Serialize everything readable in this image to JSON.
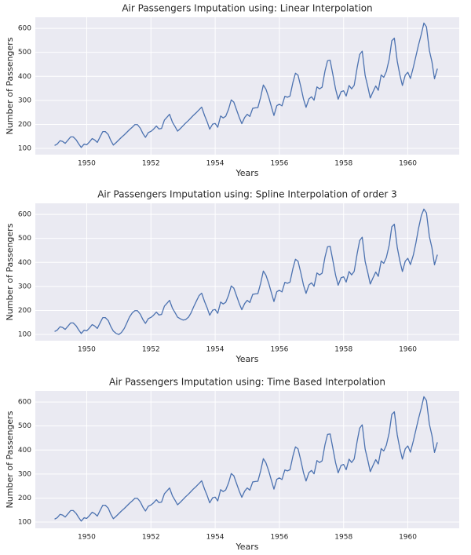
{
  "chart_data": [
    {
      "type": "line",
      "title": "Air Passengers Imputation using: Linear Interpolation",
      "xlabel": "Years",
      "ylabel": "Number of Passengers",
      "color": "#4c72b0",
      "grid": true,
      "xlim": [
        1948.4,
        1961.6
      ],
      "xticks": [
        1950,
        1952,
        1954,
        1956,
        1958,
        1960
      ],
      "ylim": [
        74,
        646
      ],
      "yticks": [
        100,
        200,
        300,
        400,
        500,
        600
      ],
      "x": [
        1949.0,
        1949.08,
        1949.17,
        1949.25,
        1949.33,
        1949.42,
        1949.5,
        1949.58,
        1949.67,
        1949.75,
        1949.83,
        1949.92,
        1950.0,
        1950.08,
        1950.17,
        1950.25,
        1950.33,
        1950.42,
        1950.5,
        1950.58,
        1950.67,
        1950.75,
        1950.83,
        1950.92,
        1951.0,
        1951.08,
        1951.17,
        1951.25,
        1951.33,
        1951.42,
        1951.5,
        1951.58,
        1951.67,
        1951.75,
        1951.83,
        1951.92,
        1952.0,
        1952.08,
        1952.17,
        1952.25,
        1952.33,
        1952.42,
        1952.5,
        1952.58,
        1952.67,
        1952.75,
        1952.83,
        1952.92,
        1953.0,
        1953.08,
        1953.17,
        1953.25,
        1953.33,
        1953.42,
        1953.5,
        1953.58,
        1953.67,
        1953.75,
        1953.83,
        1953.92,
        1954.0,
        1954.08,
        1954.17,
        1954.25,
        1954.33,
        1954.42,
        1954.5,
        1954.58,
        1954.67,
        1954.75,
        1954.83,
        1954.92,
        1955.0,
        1955.08,
        1955.17,
        1955.25,
        1955.33,
        1955.42,
        1955.5,
        1955.58,
        1955.67,
        1955.75,
        1955.83,
        1955.92,
        1956.0,
        1956.08,
        1956.17,
        1956.25,
        1956.33,
        1956.42,
        1956.5,
        1956.58,
        1956.67,
        1956.75,
        1956.83,
        1956.92,
        1957.0,
        1957.08,
        1957.17,
        1957.25,
        1957.33,
        1957.42,
        1957.5,
        1957.58,
        1957.67,
        1957.75,
        1957.83,
        1957.92,
        1958.0,
        1958.08,
        1958.17,
        1958.25,
        1958.33,
        1958.42,
        1958.5,
        1958.58,
        1958.67,
        1958.75,
        1958.83,
        1958.92,
        1959.0,
        1959.08,
        1959.17,
        1959.25,
        1959.33,
        1959.42,
        1959.5,
        1959.58,
        1959.67,
        1959.75,
        1959.83,
        1959.92,
        1960.0,
        1960.08,
        1960.17,
        1960.25,
        1960.33,
        1960.42,
        1960.5,
        1960.58,
        1960.67,
        1960.75,
        1960.83,
        1960.92
      ],
      "values": [
        112,
        118,
        132,
        129,
        121,
        135,
        148,
        148,
        136,
        119,
        104,
        118,
        115,
        126,
        141,
        135,
        125,
        149,
        170,
        170,
        158,
        133,
        114,
        124.6,
        135.3,
        145.9,
        156.5,
        167.1,
        177.8,
        188.4,
        199,
        199,
        184,
        162,
        146,
        166,
        171,
        180,
        193,
        181,
        183,
        218,
        230,
        242,
        209,
        191,
        172,
        183.1,
        194.2,
        205.3,
        216.4,
        227.6,
        238.7,
        249.8,
        260.9,
        272,
        237,
        211,
        180,
        201,
        204,
        188,
        235,
        227,
        234,
        264,
        302,
        293,
        259,
        229,
        203,
        229,
        242,
        233,
        267,
        269,
        270,
        315,
        364,
        347,
        312,
        274,
        237,
        278,
        284,
        277,
        317,
        313,
        318,
        374,
        413,
        405,
        355,
        306,
        271,
        306,
        315,
        301,
        356,
        348,
        355,
        422,
        465,
        467,
        404,
        347,
        305,
        336,
        340,
        318,
        362,
        348,
        363,
        435,
        491,
        505,
        404,
        359,
        310,
        337,
        360,
        342,
        406,
        396,
        420,
        472,
        548,
        559,
        463,
        407,
        362,
        405,
        417,
        391,
        437.2,
        483.4,
        529.6,
        575.8,
        622,
        606,
        508,
        461,
        390,
        432
      ]
    },
    {
      "type": "line",
      "title": "Air Passengers Imputation using: Spline Interpolation of order 3",
      "xlabel": "Years",
      "ylabel": "Number of Passengers",
      "color": "#4c72b0",
      "grid": true,
      "xlim": [
        1948.4,
        1961.6
      ],
      "xticks": [
        1950,
        1952,
        1954,
        1956,
        1958,
        1960
      ],
      "ylim": [
        74,
        646
      ],
      "yticks": [
        100,
        200,
        300,
        400,
        500,
        600
      ],
      "x": [
        1949.0,
        1949.08,
        1949.17,
        1949.25,
        1949.33,
        1949.42,
        1949.5,
        1949.58,
        1949.67,
        1949.75,
        1949.83,
        1949.92,
        1950.0,
        1950.08,
        1950.17,
        1950.25,
        1950.33,
        1950.42,
        1950.5,
        1950.58,
        1950.67,
        1950.75,
        1950.83,
        1950.92,
        1951.0,
        1951.08,
        1951.17,
        1951.25,
        1951.33,
        1951.42,
        1951.5,
        1951.58,
        1951.67,
        1951.75,
        1951.83,
        1951.92,
        1952.0,
        1952.08,
        1952.17,
        1952.25,
        1952.33,
        1952.42,
        1952.5,
        1952.58,
        1952.67,
        1952.75,
        1952.83,
        1952.92,
        1953.0,
        1953.08,
        1953.17,
        1953.25,
        1953.33,
        1953.42,
        1953.5,
        1953.58,
        1953.67,
        1953.75,
        1953.83,
        1953.92,
        1954.0,
        1954.08,
        1954.17,
        1954.25,
        1954.33,
        1954.42,
        1954.5,
        1954.58,
        1954.67,
        1954.75,
        1954.83,
        1954.92,
        1955.0,
        1955.08,
        1955.17,
        1955.25,
        1955.33,
        1955.42,
        1955.5,
        1955.58,
        1955.67,
        1955.75,
        1955.83,
        1955.92,
        1956.0,
        1956.08,
        1956.17,
        1956.25,
        1956.33,
        1956.42,
        1956.5,
        1956.58,
        1956.67,
        1956.75,
        1956.83,
        1956.92,
        1957.0,
        1957.08,
        1957.17,
        1957.25,
        1957.33,
        1957.42,
        1957.5,
        1957.58,
        1957.67,
        1957.75,
        1957.83,
        1957.92,
        1958.0,
        1958.08,
        1958.17,
        1958.25,
        1958.33,
        1958.42,
        1958.5,
        1958.58,
        1958.67,
        1958.75,
        1958.83,
        1958.92,
        1959.0,
        1959.08,
        1959.17,
        1959.25,
        1959.33,
        1959.42,
        1959.5,
        1959.58,
        1959.67,
        1959.75,
        1959.83,
        1959.92,
        1960.0,
        1960.08,
        1960.17,
        1960.25,
        1960.33,
        1960.42,
        1960.5,
        1960.58,
        1960.67,
        1960.75,
        1960.83,
        1960.92
      ],
      "values": [
        112,
        118,
        132,
        129,
        121,
        135,
        148,
        148,
        136,
        119,
        104,
        118,
        115,
        126,
        141,
        135,
        125,
        149,
        170,
        170,
        158,
        133,
        114,
        104,
        100,
        108,
        125,
        148,
        172,
        190,
        199,
        199,
        184,
        162,
        146,
        166,
        171,
        180,
        193,
        181,
        183,
        218,
        230,
        242,
        209,
        191,
        172,
        165,
        160,
        162,
        172,
        190,
        215,
        240,
        262,
        272,
        237,
        211,
        180,
        201,
        204,
        188,
        235,
        227,
        234,
        264,
        302,
        293,
        259,
        229,
        203,
        229,
        242,
        233,
        267,
        269,
        270,
        315,
        364,
        347,
        312,
        274,
        237,
        278,
        284,
        277,
        317,
        313,
        318,
        374,
        413,
        405,
        355,
        306,
        271,
        306,
        315,
        301,
        356,
        348,
        355,
        422,
        465,
        467,
        404,
        347,
        305,
        336,
        340,
        318,
        362,
        348,
        363,
        435,
        491,
        505,
        404,
        359,
        310,
        337,
        360,
        342,
        406,
        396,
        420,
        472,
        548,
        559,
        463,
        407,
        362,
        405,
        417,
        391,
        430,
        480,
        540,
        595,
        622,
        606,
        508,
        461,
        390,
        432
      ]
    },
    {
      "type": "line",
      "title": "Air Passengers Imputation using: Time Based Interpolation",
      "xlabel": "Years",
      "ylabel": "Number of Passengers",
      "color": "#4c72b0",
      "grid": true,
      "xlim": [
        1948.4,
        1961.6
      ],
      "xticks": [
        1950,
        1952,
        1954,
        1956,
        1958,
        1960
      ],
      "ylim": [
        74,
        646
      ],
      "yticks": [
        100,
        200,
        300,
        400,
        500,
        600
      ],
      "x": [
        1949.0,
        1949.08,
        1949.17,
        1949.25,
        1949.33,
        1949.42,
        1949.5,
        1949.58,
        1949.67,
        1949.75,
        1949.83,
        1949.92,
        1950.0,
        1950.08,
        1950.17,
        1950.25,
        1950.33,
        1950.42,
        1950.5,
        1950.58,
        1950.67,
        1950.75,
        1950.83,
        1950.92,
        1951.0,
        1951.08,
        1951.17,
        1951.25,
        1951.33,
        1951.42,
        1951.5,
        1951.58,
        1951.67,
        1951.75,
        1951.83,
        1951.92,
        1952.0,
        1952.08,
        1952.17,
        1952.25,
        1952.33,
        1952.42,
        1952.5,
        1952.58,
        1952.67,
        1952.75,
        1952.83,
        1952.92,
        1953.0,
        1953.08,
        1953.17,
        1953.25,
        1953.33,
        1953.42,
        1953.5,
        1953.58,
        1953.67,
        1953.75,
        1953.83,
        1953.92,
        1954.0,
        1954.08,
        1954.17,
        1954.25,
        1954.33,
        1954.42,
        1954.5,
        1954.58,
        1954.67,
        1954.75,
        1954.83,
        1954.92,
        1955.0,
        1955.08,
        1955.17,
        1955.25,
        1955.33,
        1955.42,
        1955.5,
        1955.58,
        1955.67,
        1955.75,
        1955.83,
        1955.92,
        1956.0,
        1956.08,
        1956.17,
        1956.25,
        1956.33,
        1956.42,
        1956.5,
        1956.58,
        1956.67,
        1956.75,
        1956.83,
        1956.92,
        1957.0,
        1957.08,
        1957.17,
        1957.25,
        1957.33,
        1957.42,
        1957.5,
        1957.58,
        1957.67,
        1957.75,
        1957.83,
        1957.92,
        1958.0,
        1958.08,
        1958.17,
        1958.25,
        1958.33,
        1958.42,
        1958.5,
        1958.58,
        1958.67,
        1958.75,
        1958.83,
        1958.92,
        1959.0,
        1959.08,
        1959.17,
        1959.25,
        1959.33,
        1959.42,
        1959.5,
        1959.58,
        1959.67,
        1959.75,
        1959.83,
        1959.92,
        1960.0,
        1960.08,
        1960.17,
        1960.25,
        1960.33,
        1960.42,
        1960.5,
        1960.58,
        1960.67,
        1960.75,
        1960.83,
        1960.92
      ],
      "values": [
        112,
        118,
        132,
        129,
        121,
        135,
        148,
        148,
        136,
        119,
        104,
        118,
        115,
        126,
        141,
        135,
        125,
        149,
        170,
        170,
        158,
        133,
        114,
        124.6,
        135.3,
        145.9,
        156.5,
        167.1,
        177.8,
        188.4,
        199,
        199,
        184,
        162,
        146,
        166,
        171,
        180,
        193,
        181,
        183,
        218,
        230,
        242,
        209,
        191,
        172,
        183.1,
        194.2,
        205.3,
        216.4,
        227.6,
        238.7,
        249.8,
        260.9,
        272,
        237,
        211,
        180,
        201,
        204,
        188,
        235,
        227,
        234,
        264,
        302,
        293,
        259,
        229,
        203,
        229,
        242,
        233,
        267,
        269,
        270,
        315,
        364,
        347,
        312,
        274,
        237,
        278,
        284,
        277,
        317,
        313,
        318,
        374,
        413,
        405,
        355,
        306,
        271,
        306,
        315,
        301,
        356,
        348,
        355,
        422,
        465,
        467,
        404,
        347,
        305,
        336,
        340,
        318,
        362,
        348,
        363,
        435,
        491,
        505,
        404,
        359,
        310,
        337,
        360,
        342,
        406,
        396,
        420,
        472,
        548,
        559,
        463,
        407,
        362,
        405,
        417,
        391,
        437.2,
        483.4,
        529.6,
        575.8,
        622,
        606,
        508,
        461,
        390,
        432
      ]
    }
  ]
}
